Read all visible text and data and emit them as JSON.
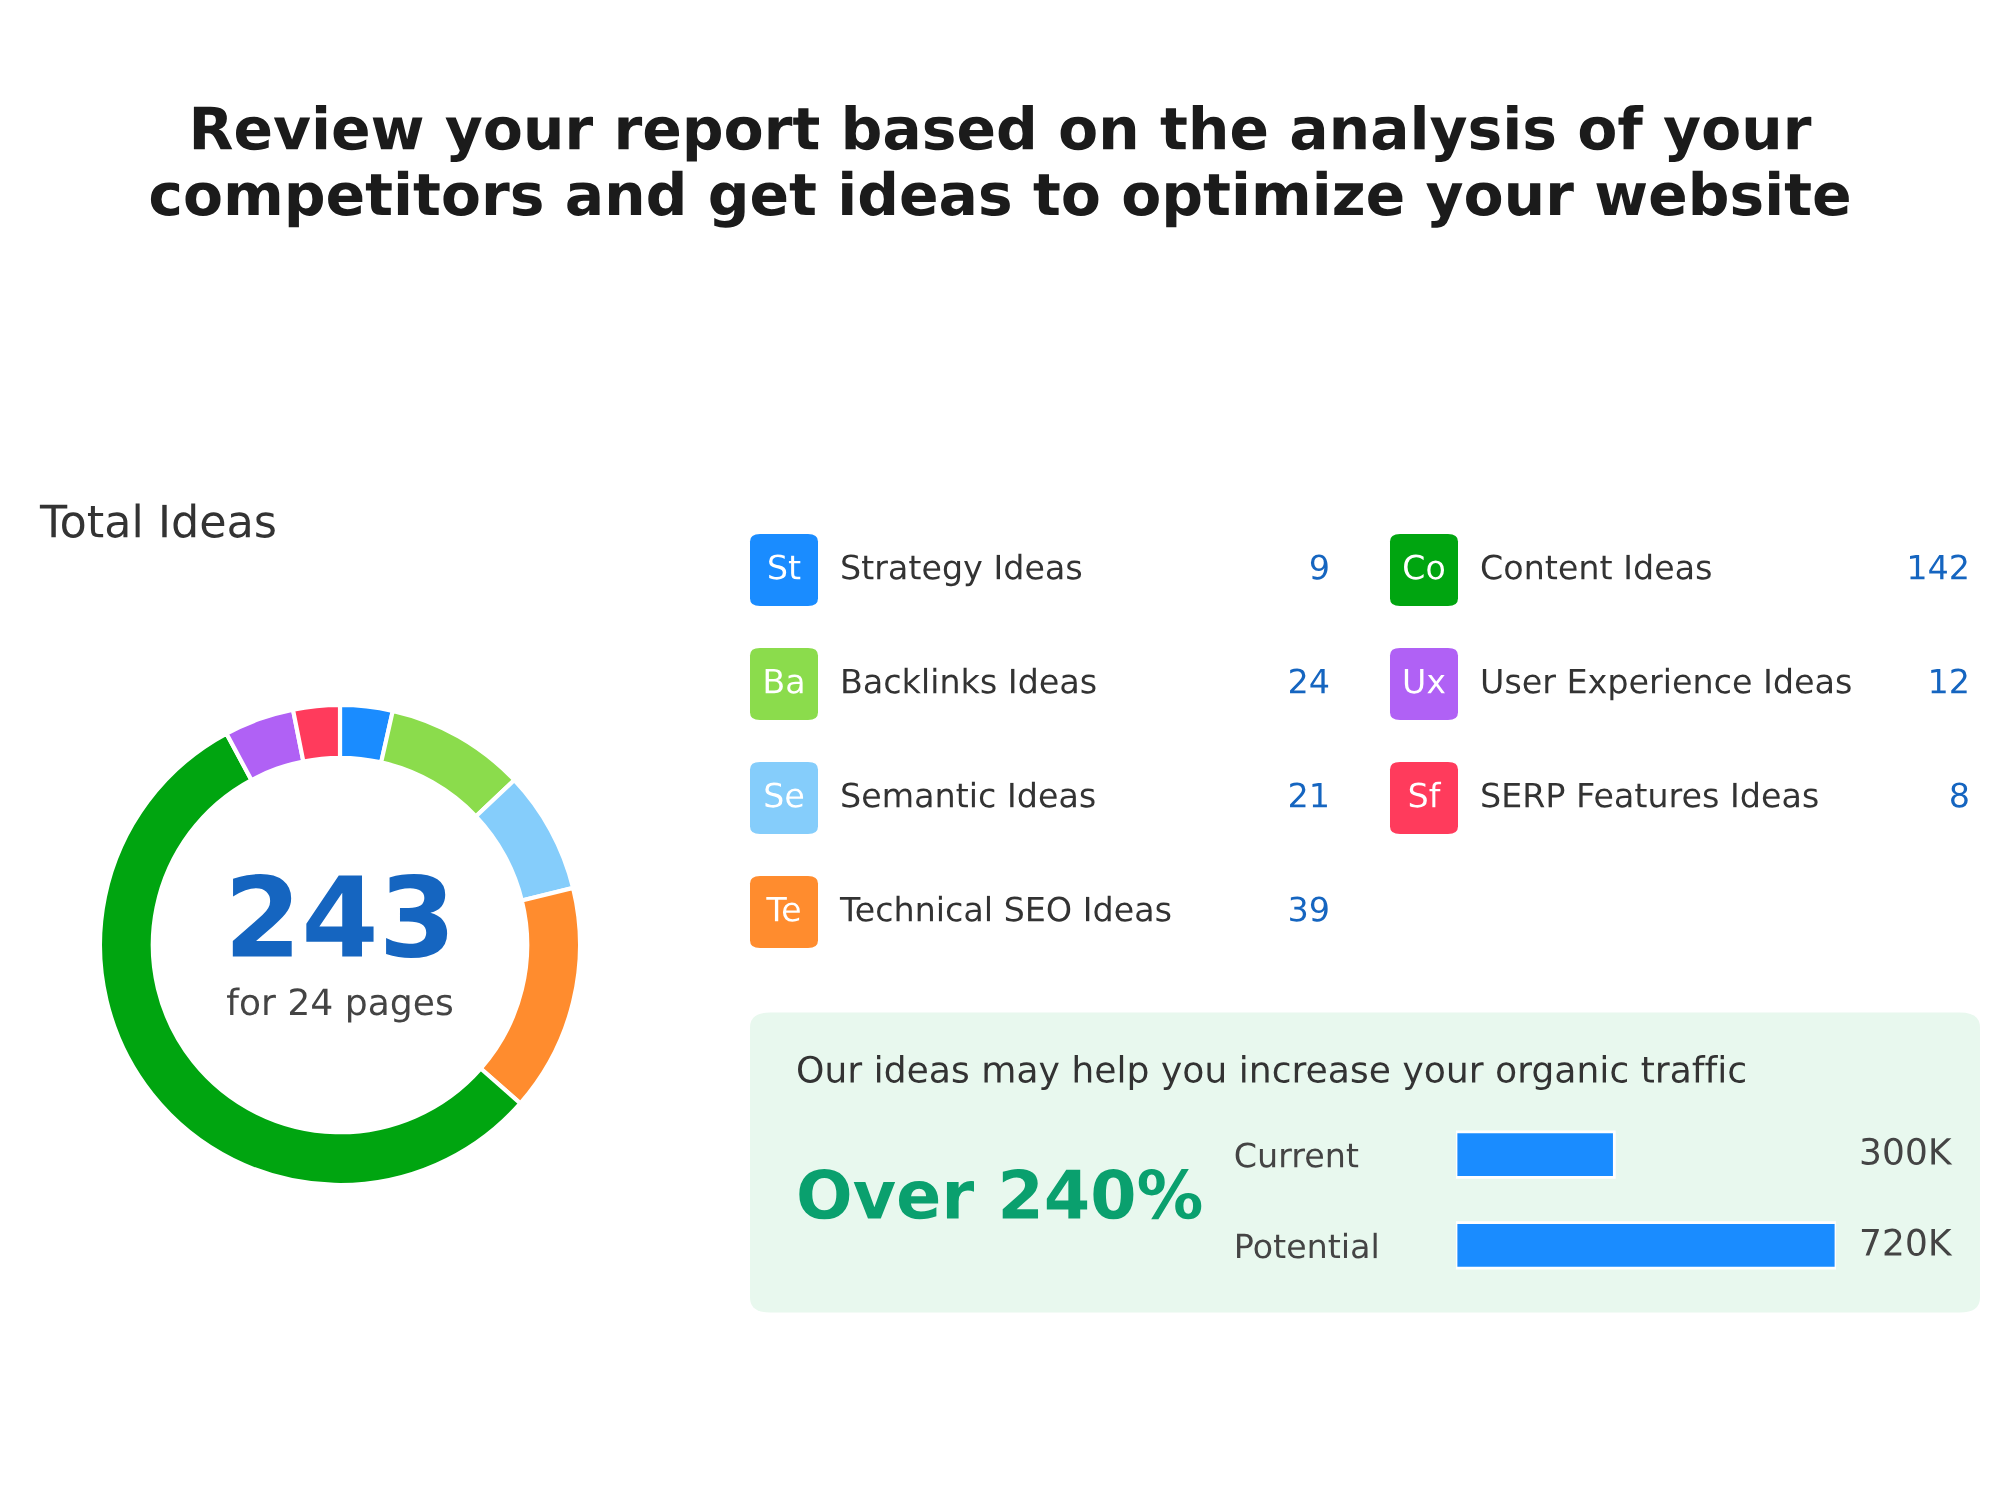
{
  "chart_data": [
    {
      "type": "donut",
      "title": "Review your report based on the analysis of your competitors and get ideas to optimize your website",
      "subtitle": "Total Ideas",
      "categories": [
        "Strategy Ideas",
        "Backlinks Ideas",
        "Semantic Ideas",
        "Technical SEO Ideas",
        "Content Ideas",
        "User Experience Ideas",
        "SERP Features Ideas"
      ],
      "values": [
        9,
        24,
        21,
        39,
        142,
        12,
        8
      ],
      "colors": [
        "#1a8cff",
        "#8bdc4c",
        "#85cdfb",
        "#ff8c2e",
        "#00a510",
        "#b061f5",
        "#ff3b5c"
      ],
      "data_labels": true,
      "legend": "right",
      "annotations": [
        "243",
        "for 24 pages",
        "St",
        "Ba",
        "Se",
        "Te",
        "Co",
        "Ux",
        "Sf"
      ]
    },
    {
      "type": "bar",
      "orientation": "horizontal",
      "title": "Our ideas may help you increase your organic traffic",
      "categories": [
        "Current",
        "Potential"
      ],
      "values": [
        300000,
        720000
      ],
      "value_labels": [
        "300K",
        "720K"
      ],
      "color": "#1a8cff",
      "xlim": [
        0,
        720000
      ],
      "tick_labels": "y",
      "grid": false,
      "annotations": [
        "Over 240%"
      ]
    }
  ]
}
